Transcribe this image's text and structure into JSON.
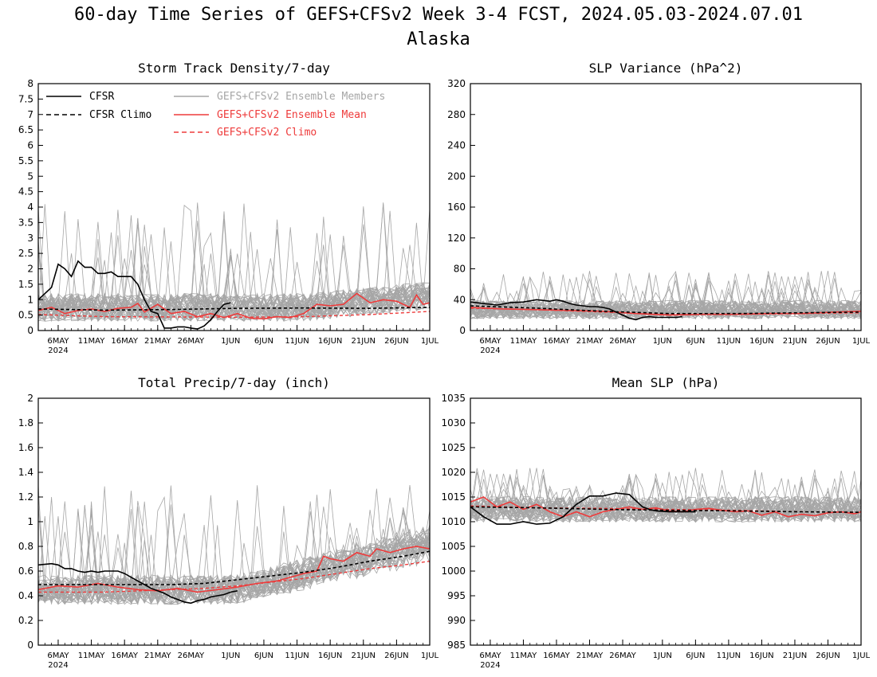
{
  "figure": {
    "title": "60-day Time Series of GEFS+CFSv2 Week 3-4 FCST, 2024.05.03-2024.07.01",
    "subtitle": "Alaska"
  },
  "colors": {
    "cfsr": "#000000",
    "cfsr_climo": "#000000",
    "members": "#a6a6a6",
    "ens_mean": "#ee3b3b",
    "ens_climo": "#ee3b3b"
  },
  "legend": {
    "cfsr": "CFSR",
    "cfsr_climo": "CFSR Climo",
    "members": "GEFS+CFSv2 Ensemble Members",
    "ens_mean": "GEFS+CFSv2 Ensemble Mean",
    "ens_climo": "GEFS+CFSv2 Climo"
  },
  "x_ticks": [
    {
      "day": 3,
      "label": "6MAY",
      "year": "2024"
    },
    {
      "day": 8,
      "label": "11MAY"
    },
    {
      "day": 13,
      "label": "16MAY"
    },
    {
      "day": 18,
      "label": "21MAY"
    },
    {
      "day": 23,
      "label": "26MAY"
    },
    {
      "day": 29,
      "label": "1JUN"
    },
    {
      "day": 34,
      "label": "6JUN"
    },
    {
      "day": 39,
      "label": "11JUN"
    },
    {
      "day": 44,
      "label": "16JUN"
    },
    {
      "day": 49,
      "label": "21JUN"
    },
    {
      "day": 54,
      "label": "26JUN"
    },
    {
      "day": 59,
      "label": "1JUL"
    }
  ],
  "chart_data": [
    {
      "type": "line",
      "title": "Storm Track Density/7-day",
      "x_start": "2024-05-03",
      "x_end": "2024-07-01",
      "ylim": [
        0,
        8
      ],
      "yticks": [
        0,
        0.5,
        1,
        1.5,
        2,
        2.5,
        3,
        3.5,
        4,
        4.5,
        5,
        5.5,
        6,
        6.5,
        7,
        7.5,
        8
      ],
      "member_band": {
        "base": 0.75,
        "spread": 0.45,
        "spike_max": 4.2
      },
      "series": [
        {
          "name": "CFSR",
          "x": [
            0,
            2,
            3,
            4,
            5,
            6,
            7,
            8,
            9,
            10,
            11,
            12,
            13,
            14,
            15,
            16,
            17,
            18,
            19,
            20,
            21,
            22,
            23,
            24,
            25,
            26,
            27,
            28,
            29
          ],
          "values": [
            1.0,
            1.4,
            2.15,
            2.0,
            1.75,
            2.25,
            2.05,
            2.05,
            1.85,
            1.85,
            1.9,
            1.75,
            1.75,
            1.75,
            1.5,
            1.0,
            0.62,
            0.55,
            0.08,
            0.08,
            0.12,
            0.12,
            0.08,
            0.05,
            0.15,
            0.35,
            0.62,
            0.85,
            0.9
          ]
        },
        {
          "name": "CFSR Climo",
          "x": [
            0,
            10,
            20,
            30,
            40,
            50,
            59
          ],
          "values": [
            0.7,
            0.66,
            0.68,
            0.72,
            0.73,
            0.72,
            0.75
          ]
        },
        {
          "name": "GEFS+CFSv2 Ensemble Mean",
          "x": [
            0,
            2,
            4,
            6,
            8,
            10,
            12,
            14,
            15,
            16,
            18,
            20,
            22,
            24,
            26,
            28,
            30,
            32,
            34,
            36,
            38,
            40,
            42,
            44,
            46,
            48,
            50,
            52,
            54,
            56,
            57,
            58,
            59
          ],
          "values": [
            0.65,
            0.75,
            0.55,
            0.65,
            0.7,
            0.62,
            0.72,
            0.75,
            0.88,
            0.6,
            0.85,
            0.55,
            0.62,
            0.45,
            0.55,
            0.42,
            0.55,
            0.4,
            0.38,
            0.45,
            0.42,
            0.55,
            0.85,
            0.8,
            0.85,
            1.2,
            0.9,
            1.0,
            0.95,
            0.75,
            1.15,
            0.85,
            0.9
          ]
        },
        {
          "name": "GEFS+CFSv2 Climo",
          "x": [
            0,
            10,
            20,
            30,
            40,
            50,
            59
          ],
          "values": [
            0.52,
            0.45,
            0.44,
            0.43,
            0.45,
            0.52,
            0.62
          ]
        }
      ]
    },
    {
      "type": "line",
      "title": "SLP Variance (hPa^2)",
      "x_start": "2024-05-03",
      "x_end": "2024-07-01",
      "ylim": [
        0,
        320
      ],
      "yticks": [
        0,
        40,
        80,
        120,
        160,
        200,
        240,
        280,
        320
      ],
      "member_band": {
        "base": 27,
        "spread": 12,
        "spike_max": 78
      },
      "series": [
        {
          "name": "CFSR",
          "x": [
            0,
            2,
            4,
            6,
            8,
            10,
            11,
            12,
            13,
            14,
            15,
            16,
            17,
            18,
            19,
            20,
            21,
            22,
            23,
            24,
            25,
            26,
            27,
            28,
            29,
            30,
            31,
            32
          ],
          "values": [
            37,
            35,
            33,
            36,
            37,
            40,
            39,
            38,
            40,
            38,
            35,
            33,
            32,
            31,
            31,
            30,
            28,
            24,
            20,
            16,
            14,
            17,
            18,
            17,
            17,
            17,
            17,
            18
          ]
        },
        {
          "name": "CFSR Climo",
          "x": [
            0,
            10,
            20,
            30,
            40,
            50,
            59
          ],
          "values": [
            32,
            29,
            25,
            22,
            22,
            23,
            24
          ]
        },
        {
          "name": "GEFS+CFSv2 Ensemble Mean",
          "x": [
            0,
            5,
            10,
            15,
            20,
            25,
            30,
            35,
            40,
            45,
            50,
            55,
            59
          ],
          "values": [
            30,
            28,
            27,
            26,
            25,
            22,
            20,
            21,
            21,
            22,
            22,
            24,
            25
          ]
        },
        {
          "name": "GEFS+CFSv2 Climo",
          "x": [
            0,
            10,
            20,
            30,
            40,
            50,
            59
          ],
          "values": [
            29,
            27,
            24,
            21,
            21,
            22,
            23
          ]
        }
      ]
    },
    {
      "type": "line",
      "title": "Total Precip/7-day (inch)",
      "x_start": "2024-05-03",
      "x_end": "2024-07-01",
      "ylim": [
        0,
        2
      ],
      "yticks": [
        0,
        0.2,
        0.4,
        0.6,
        0.8,
        1,
        1.2,
        1.4,
        1.6,
        1.8,
        2
      ],
      "member_band": {
        "base": 0.45,
        "spread": 0.12,
        "spike_max": 1.3
      },
      "series": [
        {
          "name": "CFSR",
          "x": [
            0,
            2,
            3,
            4,
            5,
            6,
            7,
            8,
            9,
            10,
            11,
            12,
            13,
            14,
            15,
            16,
            17,
            18,
            19,
            20,
            21,
            22,
            23,
            24,
            25,
            26,
            27,
            28,
            29,
            30
          ],
          "values": [
            0.65,
            0.66,
            0.65,
            0.62,
            0.62,
            0.6,
            0.59,
            0.6,
            0.59,
            0.6,
            0.6,
            0.6,
            0.58,
            0.55,
            0.52,
            0.49,
            0.46,
            0.44,
            0.42,
            0.39,
            0.37,
            0.35,
            0.34,
            0.36,
            0.37,
            0.39,
            0.4,
            0.41,
            0.43,
            0.44
          ]
        },
        {
          "name": "CFSR Climo",
          "x": [
            0,
            10,
            20,
            25,
            30,
            35,
            40,
            45,
            50,
            55,
            59
          ],
          "values": [
            0.49,
            0.49,
            0.49,
            0.5,
            0.53,
            0.56,
            0.59,
            0.63,
            0.68,
            0.72,
            0.76
          ]
        },
        {
          "name": "GEFS+CFSv2 Ensemble Mean",
          "x": [
            0,
            3,
            6,
            9,
            12,
            15,
            18,
            21,
            24,
            27,
            30,
            33,
            36,
            38,
            40,
            42,
            43,
            44,
            46,
            48,
            50,
            51,
            53,
            55,
            57,
            59
          ],
          "values": [
            0.45,
            0.48,
            0.47,
            0.5,
            0.47,
            0.45,
            0.44,
            0.46,
            0.43,
            0.45,
            0.47,
            0.5,
            0.52,
            0.55,
            0.58,
            0.6,
            0.72,
            0.7,
            0.68,
            0.75,
            0.72,
            0.78,
            0.75,
            0.78,
            0.8,
            0.78
          ]
        },
        {
          "name": "GEFS+CFSv2 Climo",
          "x": [
            0,
            10,
            20,
            25,
            30,
            35,
            40,
            45,
            50,
            55,
            59
          ],
          "values": [
            0.43,
            0.43,
            0.45,
            0.46,
            0.48,
            0.51,
            0.54,
            0.58,
            0.62,
            0.65,
            0.68
          ]
        }
      ]
    },
    {
      "type": "line",
      "title": "Mean SLP (hPa)",
      "x_start": "2024-05-03",
      "x_end": "2024-07-01",
      "ylim": [
        985,
        1035
      ],
      "yticks": [
        985,
        990,
        995,
        1000,
        1005,
        1010,
        1015,
        1020,
        1025,
        1030,
        1035
      ],
      "member_band": {
        "base": 1012.5,
        "spread": 2.6,
        "spike_max": 1021
      },
      "series": [
        {
          "name": "CFSR",
          "x": [
            0,
            2,
            4,
            6,
            8,
            10,
            12,
            14,
            16,
            18,
            20,
            22,
            24,
            26,
            27,
            28,
            30,
            32,
            34
          ],
          "values": [
            1013,
            1011,
            1009.5,
            1009.5,
            1010,
            1009.5,
            1009.7,
            1011,
            1013.5,
            1015.2,
            1015.2,
            1015.8,
            1015.5,
            1013,
            1012.5,
            1012.2,
            1012,
            1012,
            1012
          ]
        },
        {
          "name": "CFSR Climo",
          "x": [
            0,
            10,
            20,
            30,
            40,
            50,
            59
          ],
          "values": [
            1013,
            1012.8,
            1012.5,
            1012.3,
            1012.2,
            1012,
            1011.9
          ]
        },
        {
          "name": "GEFS+CFSv2 Ensemble Mean",
          "x": [
            0,
            2,
            4,
            6,
            8,
            10,
            12,
            14,
            16,
            18,
            20,
            22,
            24,
            26,
            28,
            30,
            32,
            34,
            36,
            38,
            40,
            42,
            44,
            46,
            48,
            50,
            52,
            54,
            56,
            58,
            59
          ],
          "values": [
            1014,
            1015,
            1013,
            1014,
            1012.5,
            1013.5,
            1012,
            1011,
            1012,
            1011,
            1012,
            1012.5,
            1013,
            1012.5,
            1012.8,
            1012.2,
            1012,
            1012.5,
            1012.7,
            1012.3,
            1012,
            1012.2,
            1011.3,
            1012,
            1011,
            1011.5,
            1011.2,
            1011.8,
            1012,
            1011.6,
            1012
          ]
        },
        {
          "name": "GEFS+CFSv2 Climo",
          "x": [
            0,
            10,
            20,
            30,
            40,
            50,
            59
          ],
          "values": [
            1013.2,
            1012.8,
            1012.7,
            1012.5,
            1012.3,
            1012,
            1011.9
          ]
        }
      ]
    }
  ]
}
